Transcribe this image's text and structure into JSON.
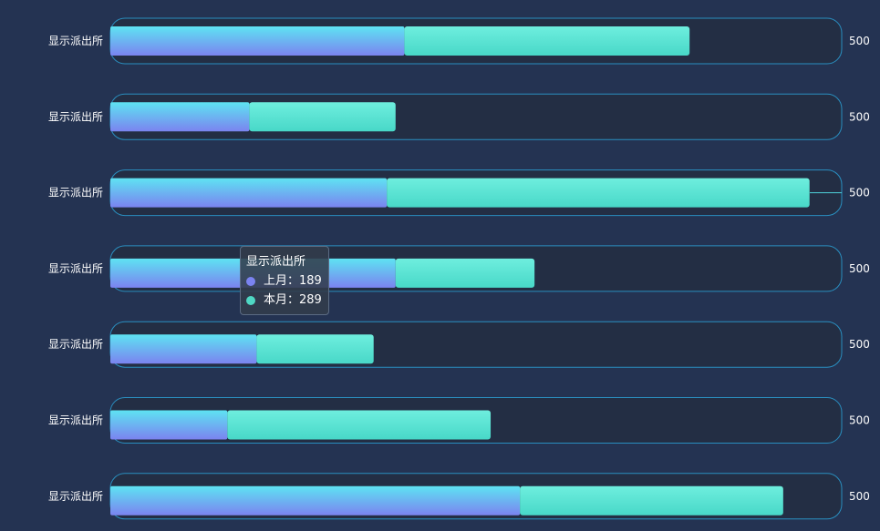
{
  "chart_data": {
    "type": "bar",
    "orientation": "horizontal",
    "stacked": true,
    "categories": [
      "显示派出所",
      "显示派出所",
      "显示派出所",
      "显示派出所",
      "显示派出所",
      "显示派出所",
      "显示派出所"
    ],
    "max_value": 500,
    "max_labels": [
      "500",
      "500",
      "500",
      "500",
      "500",
      "500",
      "500"
    ],
    "series": [
      {
        "name": "上月",
        "values": [
          201,
          95,
          189,
          195,
          100,
          80,
          280
        ],
        "color_start": "#5ee3f2",
        "color_end": "#7b83f0"
      },
      {
        "name": "本月",
        "values": [
          195,
          100,
          289,
          95,
          80,
          180,
          180
        ],
        "color_start": "#6eeede",
        "color_end": "#48d8c8"
      }
    ],
    "grid": false
  },
  "tooltip": {
    "title": "显示派出所",
    "rows": [
      {
        "label": "上月：189",
        "color": "#7b83f0"
      },
      {
        "label": "本月：289",
        "color": "#4fd8c4"
      }
    ]
  },
  "colors": {
    "background": "#243352",
    "track_fill": "#232e44",
    "track_stroke": "#2a8fc0"
  }
}
